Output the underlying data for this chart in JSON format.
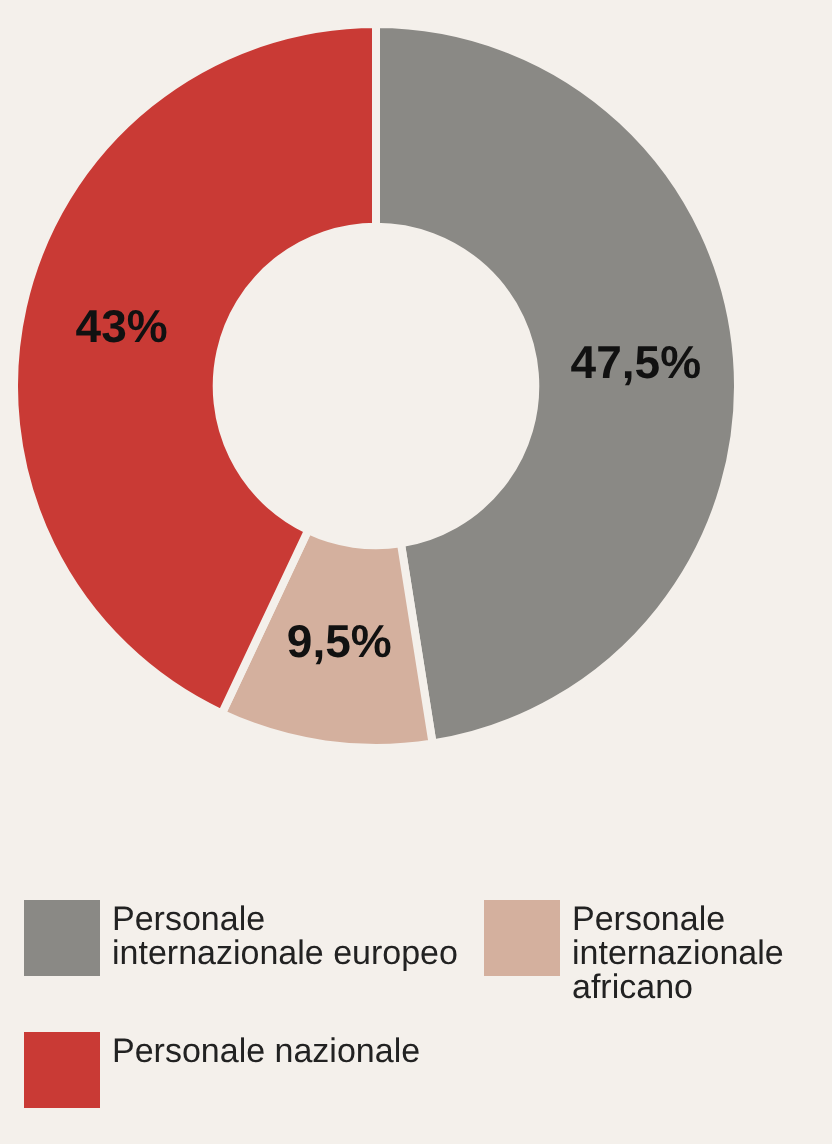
{
  "chart_data": {
    "type": "donut",
    "categories": [
      "Personale internazionale europeo",
      "Personale internazionale africano",
      "Personale nazionale"
    ],
    "values": [
      47.5,
      9.5,
      43
    ],
    "colors": [
      "#8a8985",
      "#d4b09e",
      "#c93a35"
    ],
    "value_labels": [
      "47,5%",
      "9,5%",
      "43%"
    ],
    "legend": "bottom"
  }
}
